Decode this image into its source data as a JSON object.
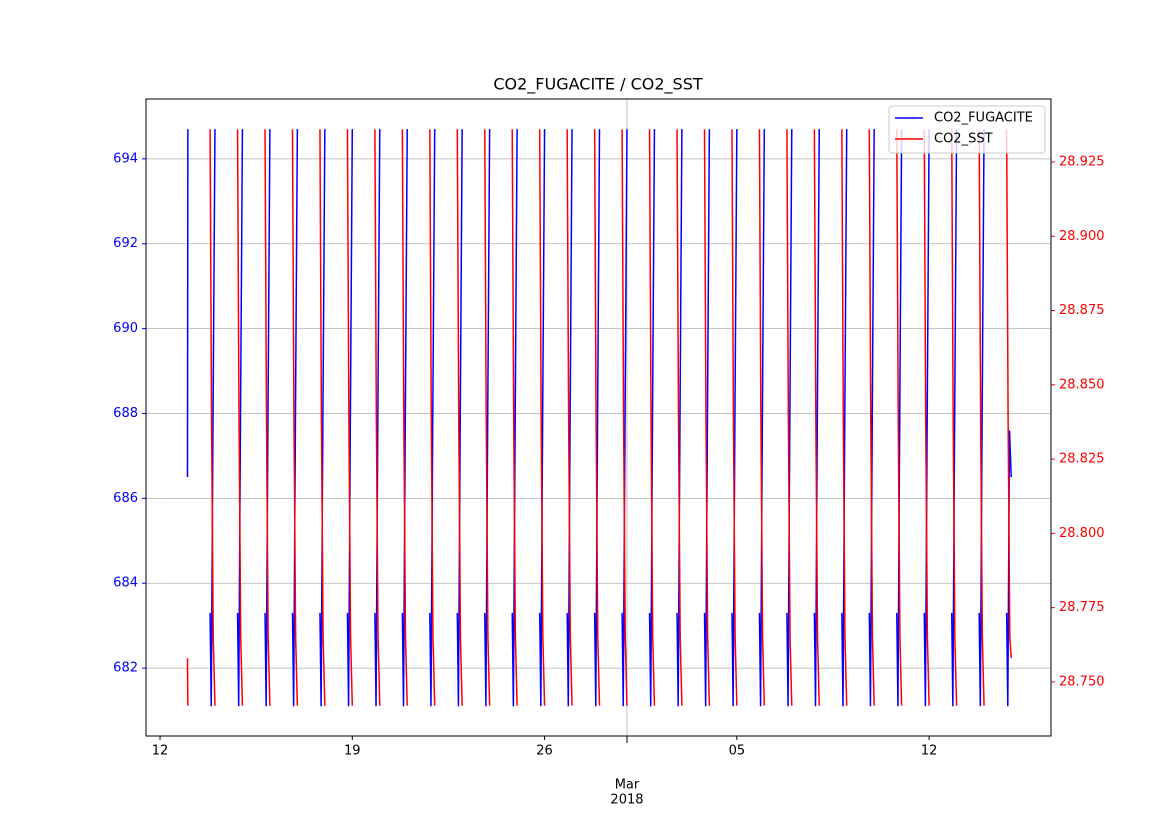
{
  "chart_data": {
    "type": "line",
    "title": "CO2_FUGACITE / CO2_SST",
    "xlim": [
      "2018-02-11 11:45",
      "2018-03-16 10:30"
    ],
    "xticks": [
      {
        "value": "2018-02-12",
        "label": "12"
      },
      {
        "value": "2018-02-19",
        "label": "19"
      },
      {
        "value": "2018-02-26",
        "label": "26"
      },
      {
        "value": "2018-03-05",
        "label": "05"
      },
      {
        "value": "2018-03-12",
        "label": "12"
      }
    ],
    "xmajor": {
      "value": "2018-03-01",
      "label": [
        "Mar",
        "2018"
      ]
    },
    "ylim": [
      680.4,
      695.41
    ],
    "yticks": [
      682,
      684,
      686,
      688,
      690,
      692,
      694
    ],
    "y2lim": [
      28.7318,
      28.9462
    ],
    "y2ticks": [
      {
        "value": 28.75,
        "label": "28.750"
      },
      28.775,
      {
        "value": 28.8,
        "label": "28.800"
      },
      28.825,
      {
        "value": 28.85,
        "label": "28.850"
      },
      28.875,
      {
        "value": 28.9,
        "label": "28.900"
      },
      28.925
    ],
    "grid": true,
    "legend": "upper right",
    "series": [
      {
        "name": "CO2_FUGACITE",
        "color": "#0000ff",
        "axis": "y",
        "x": [
          "2018-02-13 00:00",
          "2018-02-13 00:20",
          "2018-02-13 06:00",
          "2018-02-13 19:45",
          "2018-02-13 20:45",
          "2018-02-13 22:15",
          "2018-02-14 00:00",
          "2018-02-14 06:00",
          "2018-02-14 19:45",
          "2018-02-14 20:45",
          "2018-02-14 22:15",
          "2018-02-15 00:00",
          "2018-02-15 06:00",
          "2018-02-15 19:45",
          "2018-02-15 20:45",
          "2018-02-15 22:15",
          "2018-02-16 00:00",
          "2018-02-16 06:00",
          "2018-02-16 19:45",
          "2018-02-16 20:45",
          "2018-02-16 22:15",
          "2018-02-17 00:00",
          "2018-02-17 06:00",
          "2018-02-17 19:45",
          "2018-02-17 20:45",
          "2018-02-17 22:15",
          "2018-02-18 00:00",
          "2018-02-18 06:00",
          "2018-02-18 19:45",
          "2018-02-18 20:45",
          "2018-02-18 22:15",
          "2018-02-19 00:00",
          "2018-02-19 06:00",
          "2018-02-19 19:45",
          "2018-02-19 20:45",
          "2018-02-19 22:15",
          "2018-02-20 00:00",
          "2018-02-20 06:00",
          "2018-02-20 19:45",
          "2018-02-20 20:45",
          "2018-02-20 22:15",
          "2018-02-21 00:00",
          "2018-02-21 06:00",
          "2018-02-21 19:45",
          "2018-02-21 20:45",
          "2018-02-21 22:15",
          "2018-02-22 00:00",
          "2018-02-22 06:00",
          "2018-02-22 19:45",
          "2018-02-22 20:45",
          "2018-02-22 22:15",
          "2018-02-23 00:00",
          "2018-02-23 06:00",
          "2018-02-23 19:45",
          "2018-02-23 20:45",
          "2018-02-23 22:15",
          "2018-02-24 00:00",
          "2018-02-24 06:00",
          "2018-02-24 19:45",
          "2018-02-24 20:45",
          "2018-02-24 22:15",
          "2018-02-25 00:00",
          "2018-02-25 06:00",
          "2018-02-25 19:45",
          "2018-02-25 20:45",
          "2018-02-25 22:15",
          "2018-02-26 00:00",
          "2018-02-26 06:00",
          "2018-02-26 19:45",
          "2018-02-26 20:45",
          "2018-02-26 22:15",
          "2018-02-27 00:00",
          "2018-02-27 06:00",
          "2018-02-27 19:45",
          "2018-02-27 20:45",
          "2018-02-27 22:15",
          "2018-02-28 00:00",
          "2018-02-28 06:00",
          "2018-02-28 19:45",
          "2018-02-28 20:45",
          "2018-02-28 22:15",
          "2018-03-01 00:00",
          "2018-03-01 06:00",
          "2018-03-01 19:45",
          "2018-03-01 20:45",
          "2018-03-01 22:15",
          "2018-03-02 00:00",
          "2018-03-02 06:00",
          "2018-03-02 19:45",
          "2018-03-02 20:45",
          "2018-03-02 22:15",
          "2018-03-03 00:00",
          "2018-03-03 06:00",
          "2018-03-03 19:45",
          "2018-03-03 20:45",
          "2018-03-03 22:15",
          "2018-03-04 00:00",
          "2018-03-04 06:00",
          "2018-03-04 19:45",
          "2018-03-04 20:45",
          "2018-03-04 22:15",
          "2018-03-05 00:00",
          "2018-03-05 06:00",
          "2018-03-05 19:45",
          "2018-03-05 20:45",
          "2018-03-05 22:15",
          "2018-03-06 00:00",
          "2018-03-06 06:00",
          "2018-03-06 19:45",
          "2018-03-06 20:45",
          "2018-03-06 22:15",
          "2018-03-07 00:00",
          "2018-03-07 06:00",
          "2018-03-07 19:45",
          "2018-03-07 20:45",
          "2018-03-07 22:15",
          "2018-03-08 00:00",
          "2018-03-08 06:00",
          "2018-03-08 19:45",
          "2018-03-08 20:45",
          "2018-03-08 22:15",
          "2018-03-09 00:00",
          "2018-03-09 06:00",
          "2018-03-09 19:45",
          "2018-03-09 20:45",
          "2018-03-09 22:15",
          "2018-03-10 00:00",
          "2018-03-10 06:00",
          "2018-03-10 19:45",
          "2018-03-10 20:45",
          "2018-03-10 22:15",
          "2018-03-11 00:00",
          "2018-03-11 06:00",
          "2018-03-11 19:45",
          "2018-03-11 20:45",
          "2018-03-11 22:15",
          "2018-03-12 00:00",
          "2018-03-12 06:00",
          "2018-03-12 19:45",
          "2018-03-12 20:45",
          "2018-03-12 22:15",
          "2018-03-13 00:00",
          "2018-03-13 06:00",
          "2018-03-13 19:45",
          "2018-03-13 20:45",
          "2018-03-13 22:15",
          "2018-03-14 00:00",
          "2018-03-14 06:00",
          "2018-03-14 19:45",
          "2018-03-14 20:45",
          "2018-03-14 22:15",
          "2018-03-14 23:45"
        ],
        "values": [
          686.5,
          694.7,
          null,
          683.3,
          681.1,
          687.6,
          694.7,
          null,
          683.3,
          681.1,
          687.6,
          694.7,
          null,
          683.3,
          681.1,
          687.6,
          694.7,
          null,
          683.3,
          681.1,
          687.6,
          694.7,
          null,
          683.3,
          681.1,
          687.6,
          694.7,
          null,
          683.3,
          681.1,
          687.6,
          694.7,
          null,
          683.3,
          681.1,
          687.6,
          694.7,
          null,
          683.3,
          681.1,
          687.6,
          694.7,
          null,
          683.3,
          681.1,
          687.6,
          694.7,
          null,
          683.3,
          681.1,
          687.6,
          694.7,
          null,
          683.3,
          681.1,
          687.6,
          694.7,
          null,
          683.3,
          681.1,
          687.6,
          694.7,
          null,
          683.3,
          681.1,
          687.6,
          694.7,
          null,
          683.3,
          681.1,
          687.6,
          694.7,
          null,
          683.3,
          681.1,
          687.6,
          694.7,
          null,
          683.3,
          681.1,
          687.6,
          694.7,
          null,
          683.3,
          681.1,
          687.6,
          694.7,
          null,
          683.3,
          681.1,
          687.6,
          694.7,
          null,
          683.3,
          681.1,
          687.6,
          694.7,
          null,
          683.3,
          681.1,
          687.6,
          694.7,
          null,
          683.3,
          681.1,
          687.6,
          694.7,
          null,
          683.3,
          681.1,
          687.6,
          694.7,
          null,
          683.3,
          681.1,
          687.6,
          694.7,
          null,
          683.3,
          681.1,
          687.6,
          694.7,
          null,
          683.3,
          681.1,
          687.6,
          694.7,
          null,
          683.3,
          681.1,
          687.6,
          694.7,
          null,
          683.3,
          681.1,
          687.6,
          694.7,
          null,
          683.3,
          681.1,
          687.6,
          694.7,
          null,
          683.3,
          681.1,
          687.6,
          694.7,
          null,
          683.3,
          681.1,
          687.6,
          686.5
        ]
      },
      {
        "name": "CO2_SST",
        "color": "#ff0000",
        "axis": "y2",
        "x": [
          "2018-02-13 00:00",
          "2018-02-13 00:20",
          "2018-02-13 06:00",
          "2018-02-13 19:45",
          "2018-02-13 21:00",
          "2018-02-13 22:30",
          "2018-02-14 00:00",
          "2018-02-14 06:00",
          "2018-02-14 19:45",
          "2018-02-14 21:00",
          "2018-02-14 22:30",
          "2018-02-15 00:00",
          "2018-02-15 06:00",
          "2018-02-15 19:45",
          "2018-02-15 21:00",
          "2018-02-15 22:30",
          "2018-02-16 00:00",
          "2018-02-16 06:00",
          "2018-02-16 19:45",
          "2018-02-16 21:00",
          "2018-02-16 22:30",
          "2018-02-17 00:00",
          "2018-02-17 06:00",
          "2018-02-17 19:45",
          "2018-02-17 21:00",
          "2018-02-17 22:30",
          "2018-02-18 00:00",
          "2018-02-18 06:00",
          "2018-02-18 19:45",
          "2018-02-18 21:00",
          "2018-02-18 22:30",
          "2018-02-19 00:00",
          "2018-02-19 06:00",
          "2018-02-19 19:45",
          "2018-02-19 21:00",
          "2018-02-19 22:30",
          "2018-02-20 00:00",
          "2018-02-20 06:00",
          "2018-02-20 19:45",
          "2018-02-20 21:00",
          "2018-02-20 22:30",
          "2018-02-21 00:00",
          "2018-02-21 06:00",
          "2018-02-21 19:45",
          "2018-02-21 21:00",
          "2018-02-21 22:30",
          "2018-02-22 00:00",
          "2018-02-22 06:00",
          "2018-02-22 19:45",
          "2018-02-22 21:00",
          "2018-02-22 22:30",
          "2018-02-23 00:00",
          "2018-02-23 06:00",
          "2018-02-23 19:45",
          "2018-02-23 21:00",
          "2018-02-23 22:30",
          "2018-02-24 00:00",
          "2018-02-24 06:00",
          "2018-02-24 19:45",
          "2018-02-24 21:00",
          "2018-02-24 22:30",
          "2018-02-25 00:00",
          "2018-02-25 06:00",
          "2018-02-25 19:45",
          "2018-02-25 21:00",
          "2018-02-25 22:30",
          "2018-02-26 00:00",
          "2018-02-26 06:00",
          "2018-02-26 19:45",
          "2018-02-26 21:00",
          "2018-02-26 22:30",
          "2018-02-27 00:00",
          "2018-02-27 06:00",
          "2018-02-27 19:45",
          "2018-02-27 21:00",
          "2018-02-27 22:30",
          "2018-02-28 00:00",
          "2018-02-28 06:00",
          "2018-02-28 19:45",
          "2018-02-28 21:00",
          "2018-02-28 22:30",
          "2018-03-01 00:00",
          "2018-03-01 06:00",
          "2018-03-01 19:45",
          "2018-03-01 21:00",
          "2018-03-01 22:30",
          "2018-03-02 00:00",
          "2018-03-02 06:00",
          "2018-03-02 19:45",
          "2018-03-02 21:00",
          "2018-03-02 22:30",
          "2018-03-03 00:00",
          "2018-03-03 06:00",
          "2018-03-03 19:45",
          "2018-03-03 21:00",
          "2018-03-03 22:30",
          "2018-03-04 00:00",
          "2018-03-04 06:00",
          "2018-03-04 19:45",
          "2018-03-04 21:00",
          "2018-03-04 22:30",
          "2018-03-05 00:00",
          "2018-03-05 06:00",
          "2018-03-05 19:45",
          "2018-03-05 21:00",
          "2018-03-05 22:30",
          "2018-03-06 00:00",
          "2018-03-06 06:00",
          "2018-03-06 19:45",
          "2018-03-06 21:00",
          "2018-03-06 22:30",
          "2018-03-07 00:00",
          "2018-03-07 06:00",
          "2018-03-07 19:45",
          "2018-03-07 21:00",
          "2018-03-07 22:30",
          "2018-03-08 00:00",
          "2018-03-08 06:00",
          "2018-03-08 19:45",
          "2018-03-08 21:00",
          "2018-03-08 22:30",
          "2018-03-09 00:00",
          "2018-03-09 06:00",
          "2018-03-09 19:45",
          "2018-03-09 21:00",
          "2018-03-09 22:30",
          "2018-03-10 00:00",
          "2018-03-10 06:00",
          "2018-03-10 19:45",
          "2018-03-10 21:00",
          "2018-03-10 22:30",
          "2018-03-11 00:00",
          "2018-03-11 06:00",
          "2018-03-11 19:45",
          "2018-03-11 21:00",
          "2018-03-11 22:30",
          "2018-03-12 00:00",
          "2018-03-12 06:00",
          "2018-03-12 19:45",
          "2018-03-12 21:00",
          "2018-03-12 22:30",
          "2018-03-13 00:00",
          "2018-03-13 06:00",
          "2018-03-13 19:45",
          "2018-03-13 21:00",
          "2018-03-13 22:30",
          "2018-03-14 00:00",
          "2018-03-14 06:00",
          "2018-03-14 19:45",
          "2018-03-14 21:00",
          "2018-03-14 22:30",
          "2018-03-14 23:45"
        ],
        "values": [
          28.758,
          28.742,
          null,
          28.936,
          28.84,
          28.765,
          28.742,
          null,
          28.936,
          28.84,
          28.765,
          28.742,
          null,
          28.936,
          28.84,
          28.765,
          28.742,
          null,
          28.936,
          28.84,
          28.765,
          28.742,
          null,
          28.936,
          28.84,
          28.765,
          28.742,
          null,
          28.936,
          28.84,
          28.765,
          28.742,
          null,
          28.936,
          28.84,
          28.765,
          28.742,
          null,
          28.936,
          28.84,
          28.765,
          28.742,
          null,
          28.936,
          28.84,
          28.765,
          28.742,
          null,
          28.936,
          28.84,
          28.765,
          28.742,
          null,
          28.936,
          28.84,
          28.765,
          28.742,
          null,
          28.936,
          28.84,
          28.765,
          28.742,
          null,
          28.936,
          28.84,
          28.765,
          28.742,
          null,
          28.936,
          28.84,
          28.765,
          28.742,
          null,
          28.936,
          28.84,
          28.765,
          28.742,
          null,
          28.936,
          28.84,
          28.765,
          28.742,
          null,
          28.936,
          28.84,
          28.765,
          28.742,
          null,
          28.936,
          28.84,
          28.765,
          28.742,
          null,
          28.936,
          28.84,
          28.765,
          28.742,
          null,
          28.936,
          28.84,
          28.765,
          28.742,
          null,
          28.936,
          28.84,
          28.765,
          28.742,
          null,
          28.936,
          28.84,
          28.765,
          28.742,
          null,
          28.936,
          28.84,
          28.765,
          28.742,
          null,
          28.936,
          28.84,
          28.765,
          28.742,
          null,
          28.936,
          28.84,
          28.765,
          28.742,
          null,
          28.936,
          28.84,
          28.765,
          28.742,
          null,
          28.936,
          28.84,
          28.765,
          28.742,
          null,
          28.936,
          28.84,
          28.765,
          28.742,
          null,
          28.936,
          28.84,
          28.765,
          28.742,
          null,
          28.936,
          28.84,
          28.765,
          28.758
        ]
      }
    ]
  }
}
